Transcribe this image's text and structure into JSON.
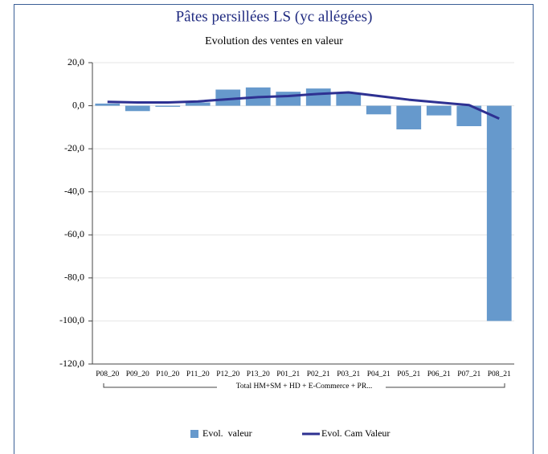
{
  "chart_data": {
    "type": "bar",
    "title": "Pâtes persillées LS (yc allégées)",
    "subtitle": "Evolution des ventes en valeur",
    "categories": [
      "P08_20",
      "P09_20",
      "P10_20",
      "P11_20",
      "P12_20",
      "P13_20",
      "P01_21",
      "P02_21",
      "P03_21",
      "P04_21",
      "P05_21",
      "P06_21",
      "P07_21",
      "P08_21"
    ],
    "group_label": "Total HM+SM + HD + E-Commerce + PR...",
    "series": [
      {
        "name": "Evol.  valeur",
        "type": "bar",
        "color": "#6699cc",
        "values": [
          1,
          -2.5,
          -0.5,
          1.5,
          7.5,
          8.5,
          6.5,
          8,
          6,
          -4,
          -11,
          -4.5,
          -9.5,
          -100
        ]
      },
      {
        "name": "Evol. Cam Valeur",
        "type": "line",
        "color": "#2e3192",
        "values": [
          1.8,
          1.5,
          1.5,
          2,
          3,
          4,
          4.5,
          5.5,
          6.2,
          4.5,
          2.8,
          1.5,
          0.3,
          -6
        ]
      }
    ],
    "ylim": [
      -120,
      20
    ],
    "yticks": [
      {
        "value": 20,
        "label": "20,0"
      },
      {
        "value": 0,
        "label": "0,0"
      },
      {
        "value": -20,
        "label": "-20,0"
      },
      {
        "value": -40,
        "label": "-40,0"
      },
      {
        "value": -60,
        "label": "-60,0"
      },
      {
        "value": -80,
        "label": "-80,0"
      },
      {
        "value": -100,
        "label": "-100,0"
      },
      {
        "value": -120,
        "label": "-120,0"
      }
    ],
    "grid": true,
    "legend": "bottom"
  }
}
